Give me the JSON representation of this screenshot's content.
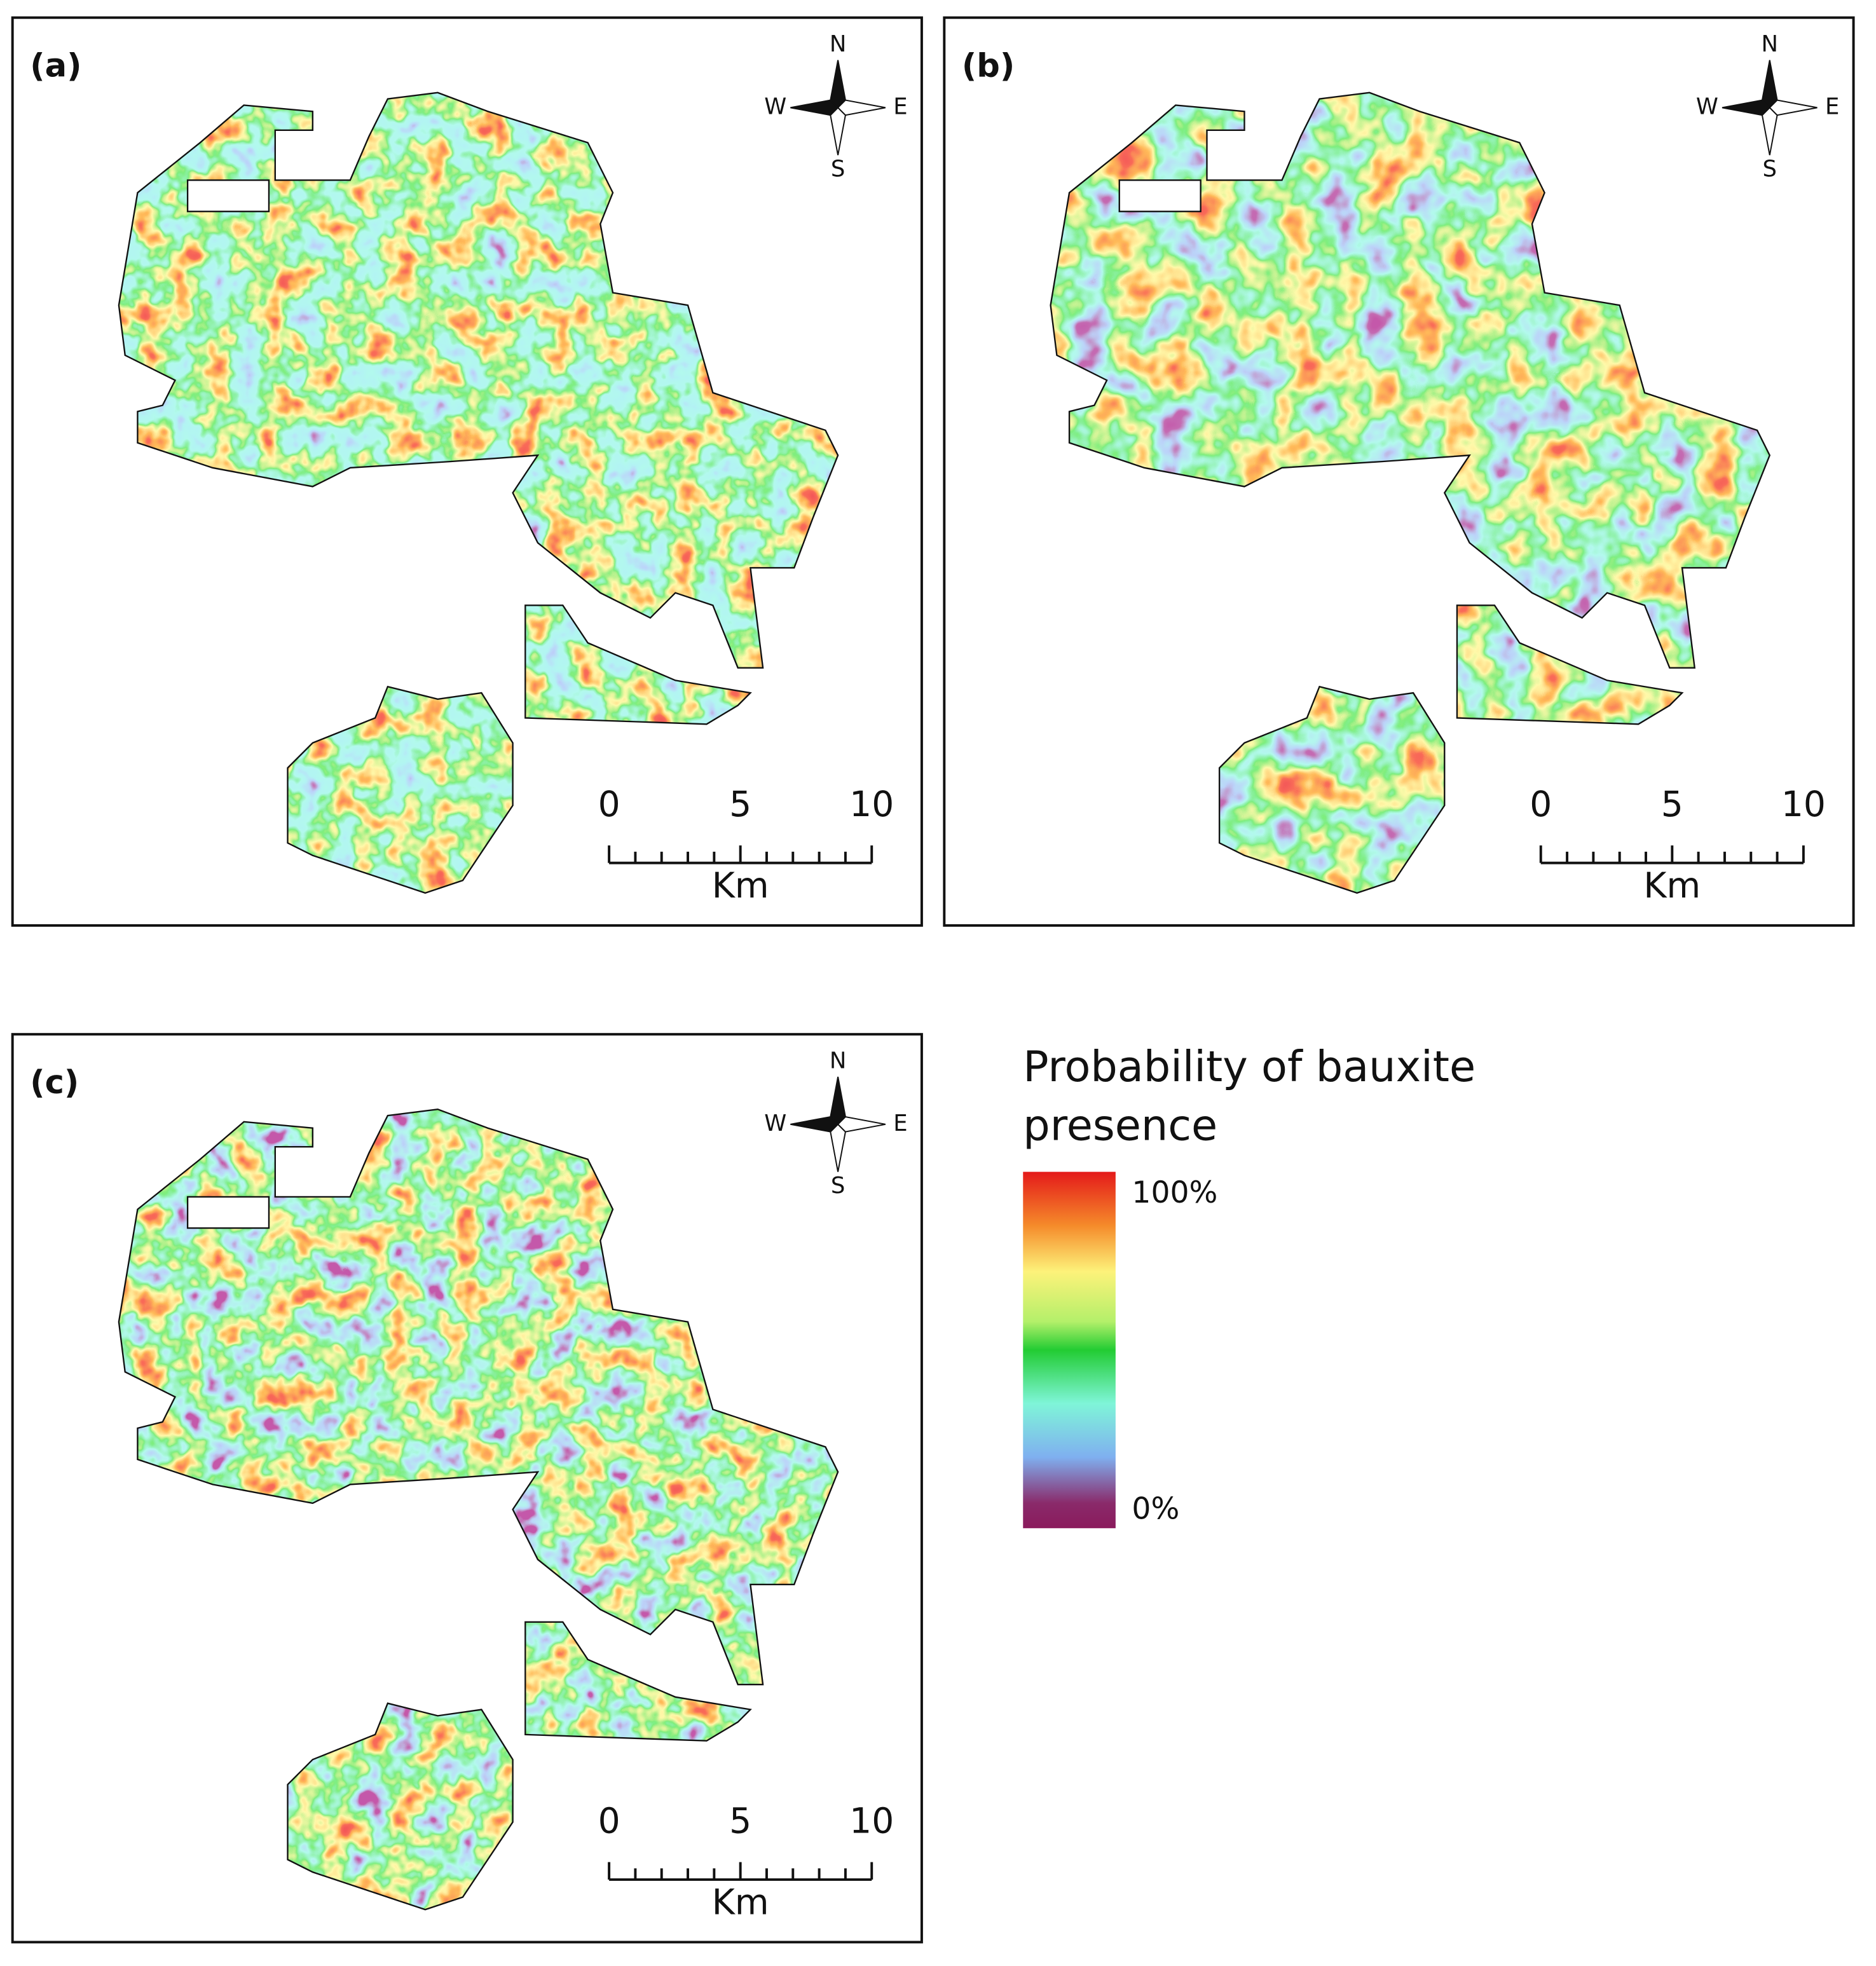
{
  "panels": [
    {
      "label": "(a)",
      "compass": {
        "n": "N",
        "w": "W",
        "e": "E",
        "s": "S"
      },
      "scale_bar": {
        "ticks": [
          "0",
          "5",
          "10"
        ],
        "unit": "Km"
      }
    },
    {
      "label": "(b)",
      "compass": {
        "n": "N",
        "w": "W",
        "e": "E",
        "s": "S"
      },
      "scale_bar": {
        "ticks": [
          "0",
          "5",
          "10"
        ],
        "unit": "Km"
      }
    },
    {
      "label": "(c)",
      "compass": {
        "n": "N",
        "w": "W",
        "e": "E",
        "s": "S"
      },
      "scale_bar": {
        "ticks": [
          "0",
          "5",
          "10"
        ],
        "unit": "Km"
      }
    }
  ],
  "legend": {
    "title_lines": [
      "Probability of bauxite",
      "presence"
    ],
    "max_label": "100%",
    "min_label": "0%"
  }
}
